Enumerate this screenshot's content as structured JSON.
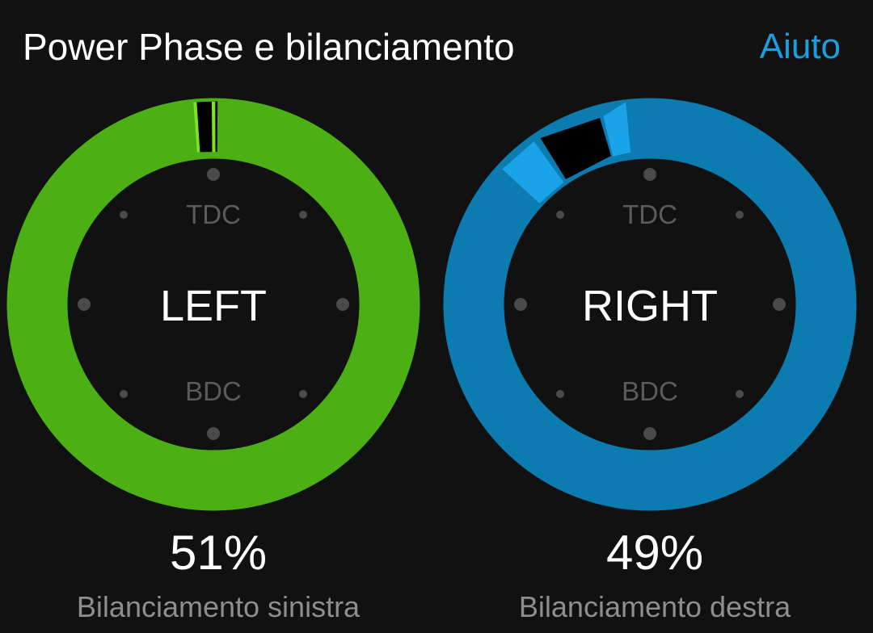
{
  "header": {
    "title": "Power Phase e bilanciamento",
    "help_label": "Aiuto"
  },
  "gauges": {
    "left": {
      "label": "LEFT",
      "tdc_label": "TDC",
      "bdc_label": "BDC",
      "percent": "51%",
      "caption": "Bilanciamento sinistra"
    },
    "right": {
      "label": "RIGHT",
      "tdc_label": "TDC",
      "bdc_label": "BDC",
      "percent": "49%",
      "caption": "Bilanciamento destra"
    }
  },
  "colors": {
    "background": "#111111",
    "left_ring": "#4caf13",
    "left_peak": "#7ee12a",
    "right_ring": "#0c7cb0",
    "right_peak": "#1aa3e8",
    "gap": "#000000",
    "accent": "#1a9ee0"
  }
}
